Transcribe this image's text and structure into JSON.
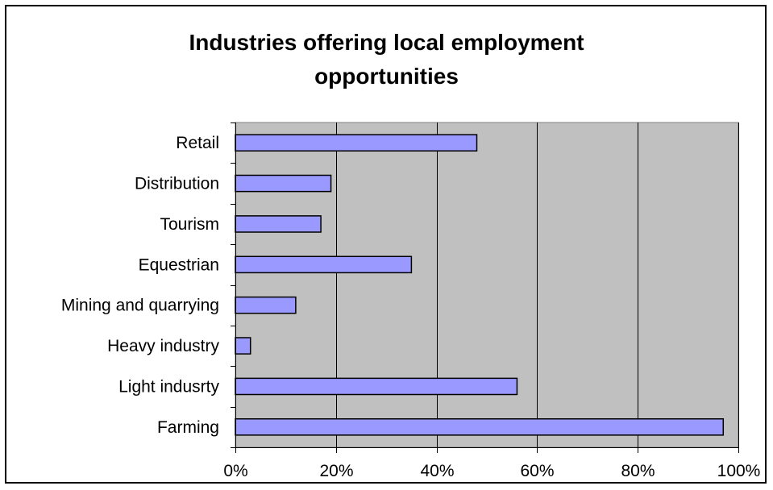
{
  "chart_data": {
    "type": "bar",
    "orientation": "horizontal",
    "title": "Industries offering local employment opportunities",
    "categories": [
      "Retail",
      "Distribution",
      "Tourism",
      "Equestrian",
      "Mining and quarrying",
      "Heavy industry",
      "Light indusrty",
      "Farming"
    ],
    "values": [
      48,
      19,
      17,
      35,
      12,
      3,
      56,
      97
    ],
    "xlim": [
      0,
      100
    ],
    "x_ticks": [
      "0%",
      "20%",
      "40%",
      "60%",
      "80%",
      "100%"
    ],
    "grid": true,
    "legend": "none",
    "colors": {
      "bar": "#9999ff",
      "plot_background": "#c0c0c0",
      "border": "#000000"
    }
  }
}
